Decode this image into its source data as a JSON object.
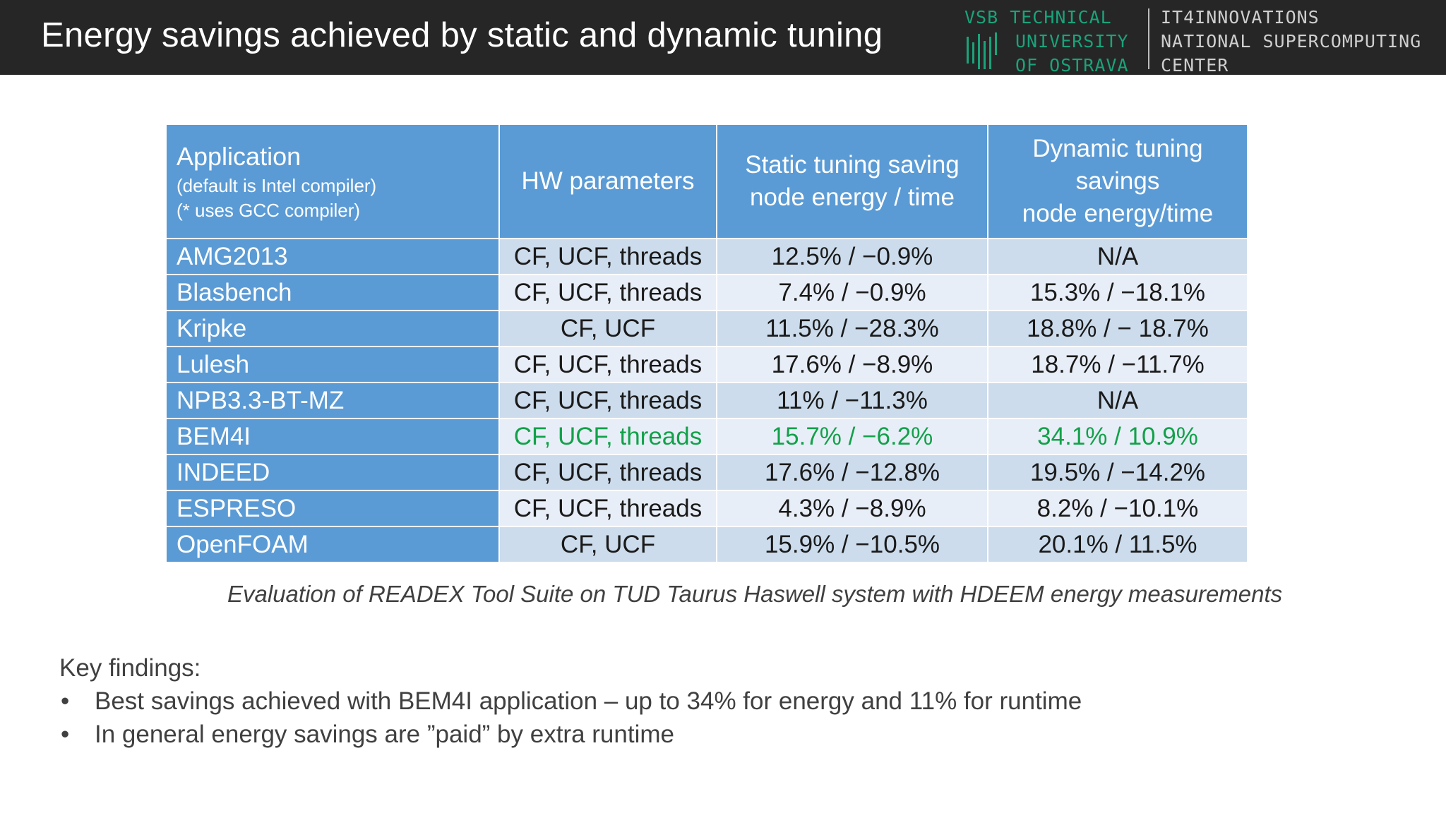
{
  "header": {
    "title": "Energy savings achieved by static and dynamic tuning",
    "logo": {
      "vsb_lines": [
        "VSB TECHNICAL",
        "UNIVERSITY",
        "OF OSTRAVA"
      ],
      "it4i_lines": [
        "IT4INNOVATIONS",
        "NATIONAL SUPERCOMPUTING",
        "CENTER"
      ]
    }
  },
  "table": {
    "headers": {
      "application": "Application",
      "application_sub1": "(default is Intel compiler)",
      "application_sub2": "(* uses GCC compiler)",
      "hw": "HW parameters",
      "static_line1": "Static tuning saving",
      "static_line2": "node energy / time",
      "dynamic_line1": "Dynamic tuning",
      "dynamic_line2": "savings",
      "dynamic_line3": "node energy/time"
    },
    "rows": [
      {
        "app": "AMG2013",
        "hw": "CF, UCF, threads",
        "static": "12.5% / −0.9%",
        "dynamic": "N/A"
      },
      {
        "app": "Blasbench",
        "hw": "CF, UCF, threads",
        "static": "7.4% / −0.9%",
        "dynamic": "15.3% / −18.1%"
      },
      {
        "app": "Kripke",
        "hw": "CF, UCF",
        "static": "11.5% / −28.3%",
        "dynamic": "18.8% / − 18.7%"
      },
      {
        "app": "Lulesh",
        "hw": "CF, UCF, threads",
        "static": "17.6% / −8.9%",
        "dynamic": "18.7% / −11.7%"
      },
      {
        "app": "NPB3.3-BT-MZ",
        "hw": "CF, UCF, threads",
        "static": "11% / −11.3%",
        "dynamic": "N/A"
      },
      {
        "app": "BEM4I",
        "hw": "CF, UCF, threads",
        "static": "15.7% / −6.2%",
        "dynamic": "34.1% / 10.9%"
      },
      {
        "app": "INDEED",
        "hw": "CF, UCF, threads",
        "static": "17.6% / −12.8%",
        "dynamic": "19.5% / −14.2%"
      },
      {
        "app": "ESPRESO",
        "hw": "CF, UCF, threads",
        "static": "4.3% / −8.9%",
        "dynamic": "8.2% / −10.1%"
      },
      {
        "app": "OpenFOAM",
        "hw": "CF, UCF",
        "static": "15.9% / −10.5%",
        "dynamic": "20.1% / 11.5%"
      }
    ],
    "highlight_color": "#12a14a",
    "header_color": "#5b9bd5"
  },
  "caption": "Evaluation of READEX Tool Suite on TUD Taurus Haswell system with HDEEM energy measurements",
  "findings": {
    "heading": "Key findings:",
    "bullet": "•",
    "items": [
      "Best savings achieved with BEM4I application – up to 34% for energy and 11% for runtime",
      "In general energy savings are ”paid” by extra runtime"
    ]
  }
}
